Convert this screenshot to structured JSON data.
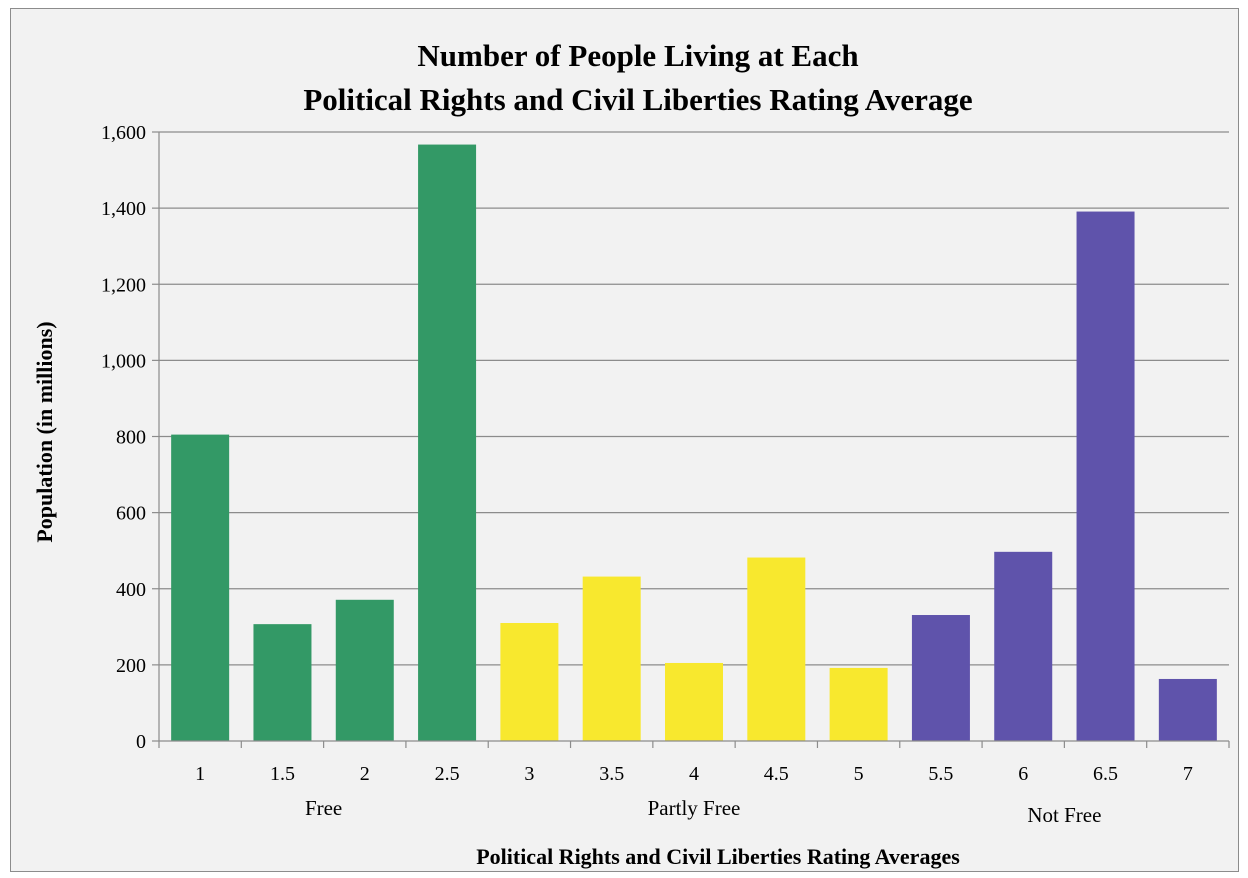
{
  "chart_data": {
    "type": "bar",
    "title_lines": [
      "Number of People Living at Each",
      "Political Rights and Civil Liberties Rating Average"
    ],
    "xlabel": "Political Rights and Civil Liberties Rating Averages",
    "ylabel": "Population (in millions)",
    "categories": [
      "1",
      "1.5",
      "2",
      "2.5",
      "3",
      "3.5",
      "4",
      "4.5",
      "5",
      "5.5",
      "6",
      "6.5",
      "7"
    ],
    "values": [
      805,
      307,
      371,
      1567,
      310,
      432,
      205,
      482,
      192,
      331,
      497,
      1391,
      163
    ],
    "ylim": [
      0,
      1600
    ],
    "yticks": [
      0,
      200,
      400,
      600,
      800,
      1000,
      1200,
      1400,
      1600
    ],
    "ytick_labels": [
      "0",
      "200",
      "400",
      "600",
      "800",
      "1,000",
      "1,200",
      "1,400",
      "1,600"
    ],
    "groups": [
      {
        "label": "Free",
        "categories": [
          "1",
          "1.5",
          "2",
          "2.5"
        ],
        "color": "#339966"
      },
      {
        "label": "Partly Free",
        "categories": [
          "3",
          "3.5",
          "4",
          "4.5",
          "5"
        ],
        "color": "#f8e82e"
      },
      {
        "label": "Not Free",
        "categories": [
          "5.5",
          "6",
          "6.5",
          "7"
        ],
        "color": "#5f53ab"
      }
    ],
    "grid": true,
    "legend": "none"
  }
}
